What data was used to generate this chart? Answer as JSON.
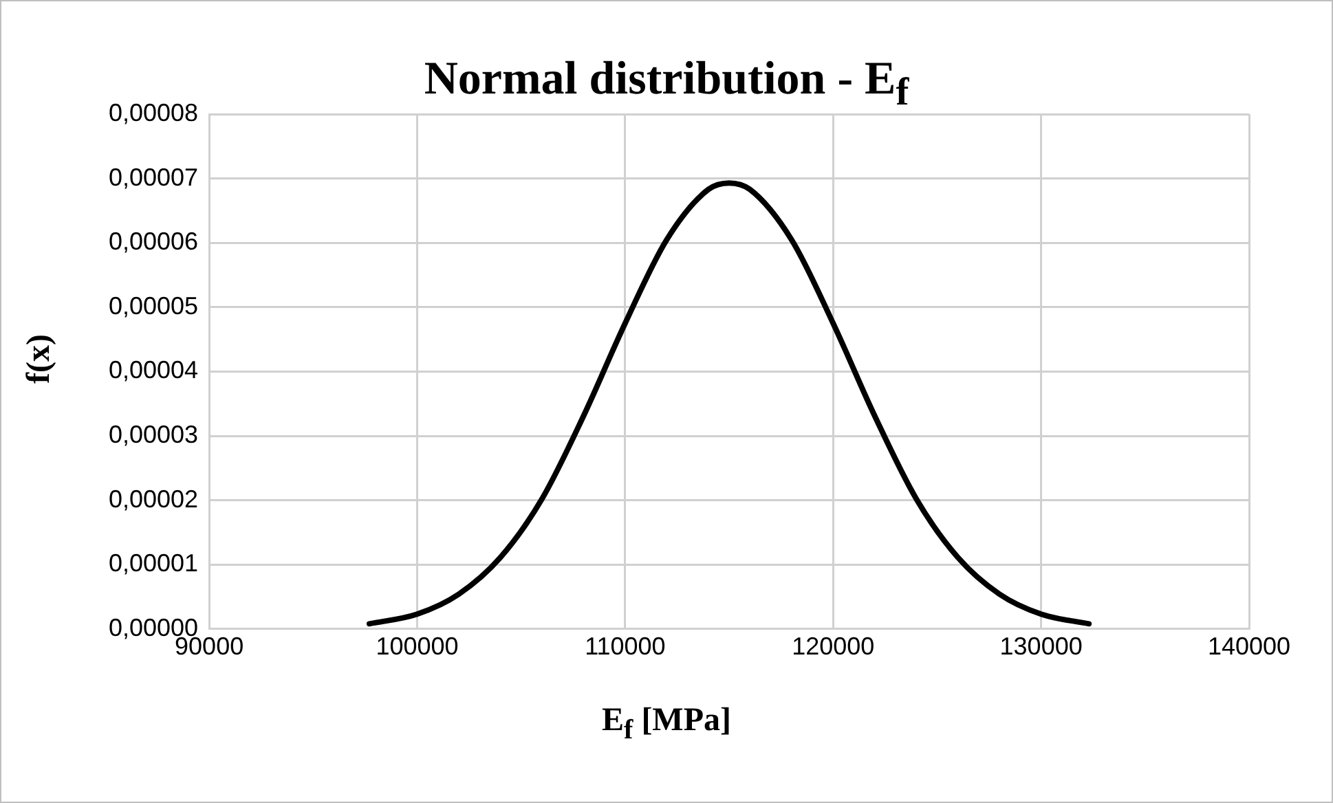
{
  "chart_data": {
    "type": "line",
    "title": "Normal distribution - E$_{f}$",
    "xlabel": "E$_{f}$ [MPa]",
    "ylabel": "f(x)",
    "x": [
      97700,
      100000,
      102000,
      104000,
      106000,
      108000,
      110000,
      112000,
      114000,
      115000,
      116000,
      118000,
      120000,
      122000,
      124000,
      126000,
      128000,
      130000,
      132300
    ],
    "series": [
      {
        "color": "#000000",
        "values": [
          8e-07,
          2.3e-06,
          5.4e-06,
          1.11e-05,
          2.02e-05,
          3.31e-05,
          4.75e-05,
          6.05e-05,
          6.83e-05,
          6.93e-05,
          6.83e-05,
          6.05e-05,
          4.75e-05,
          3.31e-05,
          2.02e-05,
          1.11e-05,
          5.4e-06,
          2.3e-06,
          8e-07
        ]
      }
    ],
    "xlim": [
      90000,
      140000
    ],
    "xticks": [
      90000,
      100000,
      110000,
      120000,
      130000,
      140000
    ],
    "ylim": [
      0,
      8e-05
    ],
    "yticks": [
      {
        "value": 0,
        "label": "0,00000"
      },
      {
        "value": 1e-05,
        "label": "0,00001"
      },
      {
        "value": 2e-05,
        "label": "0,00002"
      },
      {
        "value": 3e-05,
        "label": "0,00003"
      },
      {
        "value": 4e-05,
        "label": "0,00004"
      },
      {
        "value": 5e-05,
        "label": "0,00005"
      },
      {
        "value": 6e-05,
        "label": "0,00006"
      },
      {
        "value": 7e-05,
        "label": "0,00007"
      },
      {
        "value": 8e-05,
        "label": "0,00008"
      }
    ],
    "grid": true,
    "legend": false,
    "marker": "none",
    "line_style": "solid"
  }
}
